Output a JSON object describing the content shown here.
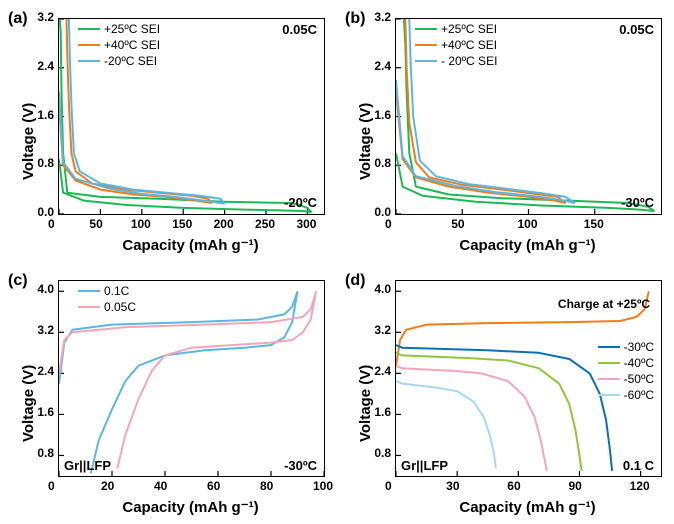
{
  "global": {
    "bg": "#ffffff",
    "axis_color": "#000000",
    "axis_font": "Arial",
    "axis_label_fontsize": 15,
    "tick_fontsize": 12
  },
  "panel_a": {
    "label": "(a)",
    "ylabel": "Voltage (V)",
    "xlabel": "Capacity (mAh g⁻¹)",
    "top_right_note": "0.05C",
    "bottom_right_note": "-20ºC",
    "xlim": [
      0,
      320
    ],
    "xticks": [
      0,
      50,
      100,
      150,
      200,
      250,
      300
    ],
    "ylim": [
      0,
      3.2
    ],
    "yticks": [
      0.0,
      0.8,
      1.6,
      2.4,
      3.2
    ],
    "legend": [
      {
        "label": "+25ºC SEI",
        "color": "#1db954"
      },
      {
        "label": "+40ºC SEI",
        "color": "#ef7d1a"
      },
      {
        "label": "-20ºC SEI",
        "color": "#5cb6e4"
      }
    ],
    "series": [
      {
        "color": "#1db954",
        "width": 2,
        "type": "cycle",
        "discharge": [
          [
            0,
            0.9
          ],
          [
            5,
            0.35
          ],
          [
            30,
            0.22
          ],
          [
            80,
            0.15
          ],
          [
            150,
            0.1
          ],
          [
            230,
            0.07
          ],
          [
            295,
            0.05
          ],
          [
            305,
            0.03
          ]
        ],
        "charge": [
          [
            305,
            0.03
          ],
          [
            300,
            0.1
          ],
          [
            290,
            0.15
          ],
          [
            280,
            0.18
          ],
          [
            200,
            0.2
          ],
          [
            120,
            0.25
          ],
          [
            50,
            0.28
          ],
          [
            10,
            0.35
          ],
          [
            5,
            1.0
          ],
          [
            3,
            2.0
          ],
          [
            2,
            3.0
          ],
          [
            1,
            3.2
          ]
        ]
      },
      {
        "color": "#ef7d1a",
        "width": 2,
        "type": "cycle",
        "discharge": [
          [
            0,
            1.8
          ],
          [
            5,
            0.8
          ],
          [
            20,
            0.55
          ],
          [
            50,
            0.4
          ],
          [
            90,
            0.32
          ],
          [
            130,
            0.28
          ],
          [
            165,
            0.22
          ],
          [
            185,
            0.18
          ]
        ],
        "charge": [
          [
            185,
            0.18
          ],
          [
            180,
            0.25
          ],
          [
            160,
            0.3
          ],
          [
            120,
            0.35
          ],
          [
            80,
            0.4
          ],
          [
            40,
            0.5
          ],
          [
            20,
            0.7
          ],
          [
            15,
            1.0
          ],
          [
            12,
            1.8
          ],
          [
            10,
            2.6
          ],
          [
            9,
            3.2
          ]
        ]
      },
      {
        "color": "#5cb6e4",
        "width": 2,
        "type": "cycle",
        "discharge": [
          [
            0,
            2.0
          ],
          [
            5,
            0.85
          ],
          [
            20,
            0.58
          ],
          [
            60,
            0.42
          ],
          [
            100,
            0.33
          ],
          [
            140,
            0.28
          ],
          [
            175,
            0.22
          ],
          [
            200,
            0.17
          ]
        ],
        "charge": [
          [
            200,
            0.17
          ],
          [
            195,
            0.25
          ],
          [
            170,
            0.3
          ],
          [
            130,
            0.35
          ],
          [
            90,
            0.4
          ],
          [
            50,
            0.5
          ],
          [
            25,
            0.7
          ],
          [
            18,
            1.0
          ],
          [
            15,
            1.8
          ],
          [
            13,
            2.6
          ],
          [
            12,
            3.2
          ]
        ]
      }
    ]
  },
  "panel_b": {
    "label": "(b)",
    "ylabel": "Voltage (V)",
    "xlabel": "Capacity (mAh g⁻¹)",
    "top_right_note": "0.05C",
    "bottom_right_note": "-30ºC",
    "xlim": [
      0,
      200
    ],
    "xticks": [
      0,
      50,
      100,
      150
    ],
    "ylim": [
      0,
      3.2
    ],
    "yticks": [
      0.0,
      0.8,
      1.6,
      2.4,
      3.2
    ],
    "legend": [
      {
        "label": "+25ºC SEI",
        "color": "#1db954"
      },
      {
        "label": "+40ºC SEI",
        "color": "#ef7d1a"
      },
      {
        "label": "- 20ºC SEI",
        "color": "#5cb6e4"
      }
    ],
    "series": [
      {
        "color": "#1db954",
        "width": 2,
        "type": "cycle",
        "discharge": [
          [
            0,
            1.0
          ],
          [
            5,
            0.45
          ],
          [
            20,
            0.3
          ],
          [
            60,
            0.2
          ],
          [
            110,
            0.14
          ],
          [
            160,
            0.1
          ],
          [
            185,
            0.07
          ],
          [
            195,
            0.05
          ]
        ],
        "charge": [
          [
            195,
            0.05
          ],
          [
            190,
            0.12
          ],
          [
            175,
            0.18
          ],
          [
            130,
            0.22
          ],
          [
            80,
            0.26
          ],
          [
            40,
            0.32
          ],
          [
            15,
            0.45
          ],
          [
            10,
            1.0
          ],
          [
            8,
            2.0
          ],
          [
            7,
            2.8
          ],
          [
            6,
            3.2
          ]
        ]
      },
      {
        "color": "#ef7d1a",
        "width": 2,
        "type": "cycle",
        "discharge": [
          [
            0,
            2.0
          ],
          [
            5,
            0.9
          ],
          [
            15,
            0.6
          ],
          [
            40,
            0.45
          ],
          [
            70,
            0.35
          ],
          [
            100,
            0.28
          ],
          [
            120,
            0.22
          ],
          [
            128,
            0.18
          ]
        ],
        "charge": [
          [
            128,
            0.18
          ],
          [
            122,
            0.28
          ],
          [
            105,
            0.33
          ],
          [
            80,
            0.4
          ],
          [
            50,
            0.48
          ],
          [
            25,
            0.6
          ],
          [
            15,
            0.85
          ],
          [
            10,
            1.5
          ],
          [
            8,
            2.4
          ],
          [
            7,
            3.2
          ]
        ]
      },
      {
        "color": "#5cb6e4",
        "width": 2,
        "type": "cycle",
        "discharge": [
          [
            0,
            2.2
          ],
          [
            5,
            0.95
          ],
          [
            15,
            0.62
          ],
          [
            45,
            0.46
          ],
          [
            75,
            0.36
          ],
          [
            105,
            0.29
          ],
          [
            125,
            0.23
          ],
          [
            135,
            0.18
          ]
        ],
        "charge": [
          [
            135,
            0.18
          ],
          [
            128,
            0.28
          ],
          [
            110,
            0.34
          ],
          [
            85,
            0.41
          ],
          [
            55,
            0.49
          ],
          [
            30,
            0.62
          ],
          [
            18,
            0.88
          ],
          [
            13,
            1.6
          ],
          [
            11,
            2.5
          ],
          [
            10,
            3.2
          ]
        ]
      }
    ]
  },
  "panel_c": {
    "label": "(c)",
    "ylabel": "Voltage (V)",
    "xlabel": "Capacity (mAh g⁻¹)",
    "bottom_left_note": "Gr||LFP",
    "bottom_right_note": "-30ºC",
    "xlim": [
      0,
      100
    ],
    "xticks": [
      0,
      20,
      40,
      60,
      80,
      100
    ],
    "ylim": [
      0.4,
      4.2
    ],
    "yticks": [
      0.8,
      1.6,
      2.4,
      3.2,
      4.0
    ],
    "legend": [
      {
        "label": "0.1C",
        "color": "#5cb6e4"
      },
      {
        "label": "0.05C",
        "color": "#f4a6b8"
      }
    ],
    "series": [
      {
        "color": "#5cb6e4",
        "width": 2,
        "type": "cycle",
        "charge": [
          [
            0,
            2.2
          ],
          [
            2,
            3.0
          ],
          [
            5,
            3.25
          ],
          [
            20,
            3.35
          ],
          [
            50,
            3.4
          ],
          [
            75,
            3.45
          ],
          [
            85,
            3.55
          ],
          [
            88,
            3.7
          ],
          [
            90,
            4.0
          ]
        ],
        "discharge": [
          [
            90,
            4.0
          ],
          [
            88,
            3.4
          ],
          [
            85,
            3.1
          ],
          [
            80,
            2.95
          ],
          [
            70,
            2.9
          ],
          [
            55,
            2.85
          ],
          [
            40,
            2.75
          ],
          [
            30,
            2.55
          ],
          [
            25,
            2.25
          ],
          [
            20,
            1.7
          ],
          [
            15,
            1.1
          ],
          [
            12,
            0.45
          ]
        ]
      },
      {
        "color": "#f4a6b8",
        "width": 2,
        "type": "cycle",
        "charge": [
          [
            0,
            2.4
          ],
          [
            2,
            3.05
          ],
          [
            5,
            3.2
          ],
          [
            25,
            3.3
          ],
          [
            55,
            3.35
          ],
          [
            80,
            3.4
          ],
          [
            92,
            3.5
          ],
          [
            95,
            3.65
          ],
          [
            97,
            4.0
          ]
        ],
        "discharge": [
          [
            97,
            4.0
          ],
          [
            95,
            3.45
          ],
          [
            92,
            3.2
          ],
          [
            88,
            3.05
          ],
          [
            80,
            3.0
          ],
          [
            65,
            2.95
          ],
          [
            50,
            2.9
          ],
          [
            40,
            2.75
          ],
          [
            35,
            2.45
          ],
          [
            30,
            1.9
          ],
          [
            25,
            1.2
          ],
          [
            22,
            0.55
          ]
        ]
      }
    ]
  },
  "panel_d": {
    "label": "(d)",
    "ylabel": "Voltage (V)",
    "xlabel": "Capacity (mAh g⁻¹)",
    "bottom_left_note": "Gr||LFP",
    "bottom_right_note": "0.1 C",
    "charge_note": "Charge at +25ºC",
    "xlim": [
      0,
      130
    ],
    "xticks": [
      0,
      30,
      60,
      90,
      120
    ],
    "ylim": [
      0.4,
      4.2
    ],
    "yticks": [
      0.8,
      1.6,
      2.4,
      3.2,
      4.0
    ],
    "legend": [
      {
        "label": "-30ºC",
        "color": "#0b6fb8"
      },
      {
        "label": "-40ºC",
        "color": "#8ec63f"
      },
      {
        "label": "-50ºC",
        "color": "#f4a6b8"
      },
      {
        "label": "-60ºC",
        "color": "#a6d8f0"
      }
    ],
    "series": [
      {
        "color": "#ef7d1a",
        "width": 2,
        "type": "line",
        "pts": [
          [
            0,
            2.55
          ],
          [
            2,
            3.05
          ],
          [
            5,
            3.25
          ],
          [
            15,
            3.35
          ],
          [
            45,
            3.38
          ],
          [
            85,
            3.4
          ],
          [
            110,
            3.42
          ],
          [
            118,
            3.5
          ],
          [
            122,
            3.65
          ],
          [
            124,
            4.0
          ]
        ]
      },
      {
        "color": "#0b6fb8",
        "width": 2,
        "type": "line",
        "pts": [
          [
            0,
            2.95
          ],
          [
            3,
            2.9
          ],
          [
            20,
            2.88
          ],
          [
            45,
            2.85
          ],
          [
            70,
            2.8
          ],
          [
            85,
            2.68
          ],
          [
            95,
            2.4
          ],
          [
            100,
            2.0
          ],
          [
            103,
            1.5
          ],
          [
            105,
            0.9
          ],
          [
            106,
            0.5
          ]
        ]
      },
      {
        "color": "#8ec63f",
        "width": 2,
        "type": "line",
        "pts": [
          [
            0,
            2.8
          ],
          [
            3,
            2.75
          ],
          [
            15,
            2.73
          ],
          [
            35,
            2.7
          ],
          [
            55,
            2.65
          ],
          [
            70,
            2.5
          ],
          [
            80,
            2.2
          ],
          [
            85,
            1.8
          ],
          [
            88,
            1.3
          ],
          [
            90,
            0.8
          ],
          [
            91,
            0.5
          ]
        ]
      },
      {
        "color": "#f4a6b8",
        "width": 2,
        "type": "line",
        "pts": [
          [
            0,
            2.55
          ],
          [
            3,
            2.5
          ],
          [
            12,
            2.48
          ],
          [
            28,
            2.45
          ],
          [
            42,
            2.4
          ],
          [
            55,
            2.25
          ],
          [
            63,
            1.95
          ],
          [
            68,
            1.55
          ],
          [
            71,
            1.1
          ],
          [
            73,
            0.7
          ],
          [
            74,
            0.5
          ]
        ]
      },
      {
        "color": "#a6d8f0",
        "width": 2,
        "type": "line",
        "pts": [
          [
            0,
            2.25
          ],
          [
            3,
            2.2
          ],
          [
            10,
            2.17
          ],
          [
            20,
            2.12
          ],
          [
            30,
            2.05
          ],
          [
            38,
            1.85
          ],
          [
            43,
            1.55
          ],
          [
            46,
            1.2
          ],
          [
            48,
            0.85
          ],
          [
            49,
            0.55
          ]
        ]
      }
    ]
  }
}
